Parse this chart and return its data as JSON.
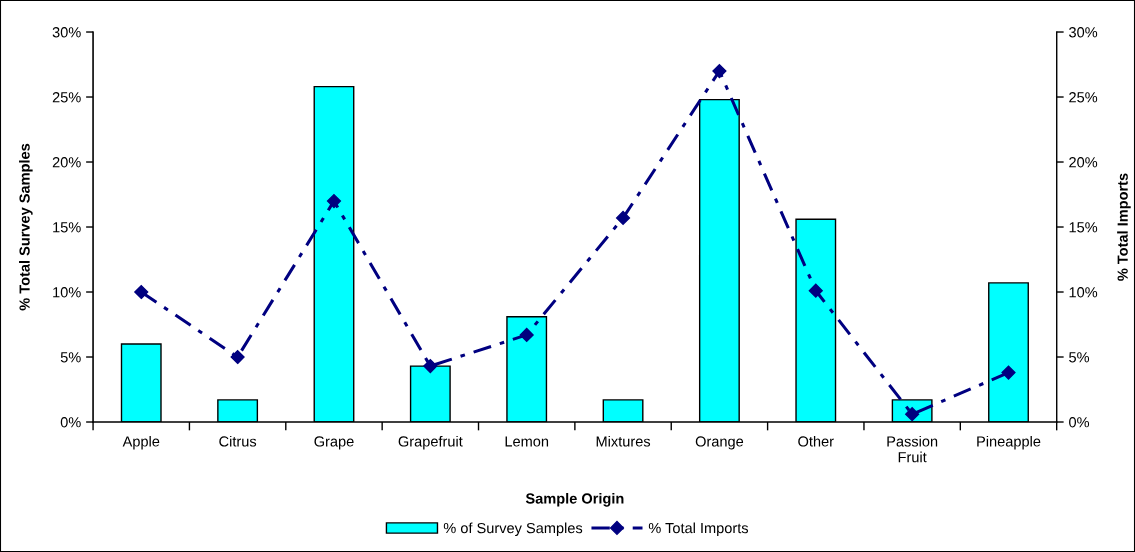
{
  "chart_data": {
    "type": "bar",
    "xlabel": "Sample Origin",
    "ylabel": "% Total Survey Samples",
    "y2label": "% Total Imports",
    "categories": [
      "Apple",
      "Citrus",
      "Grape",
      "Grapefruit",
      "Lemon",
      "Mixtures",
      "Orange",
      "Other",
      "Passion\nFruit",
      "Pineapple"
    ],
    "series": [
      {
        "name": "% of Survey Samples",
        "color": "#00ffff",
        "values": [
          6.0,
          1.7,
          25.8,
          4.3,
          8.1,
          1.7,
          24.8,
          15.6,
          1.7,
          10.7
        ]
      },
      {
        "name": "% Total Imports",
        "type": "line",
        "axis": "y2",
        "color": "#000080",
        "marker": "diamond",
        "line_style": "dashdot",
        "values": [
          10.0,
          5.0,
          17.0,
          4.3,
          6.7,
          15.7,
          27.0,
          10.1,
          0.6,
          3.8
        ]
      }
    ],
    "ylim": [
      0,
      30
    ],
    "yticks": [
      {
        "value": 0,
        "label": "0%"
      },
      {
        "value": 5,
        "label": "5%"
      },
      {
        "value": 10,
        "label": "10%"
      },
      {
        "value": 15,
        "label": "15%"
      },
      {
        "value": 20,
        "label": "20%"
      },
      {
        "value": 25,
        "label": "25%"
      },
      {
        "value": 30,
        "label": "30%"
      }
    ],
    "y2lim": [
      0,
      30
    ],
    "y2ticks": [
      {
        "value": 0,
        "label": "0%"
      },
      {
        "value": 5,
        "label": "5%"
      },
      {
        "value": 10,
        "label": "10%"
      },
      {
        "value": 15,
        "label": "15%"
      },
      {
        "value": 20,
        "label": "20%"
      },
      {
        "value": 25,
        "label": "25%"
      },
      {
        "value": 30,
        "label": "30%"
      }
    ],
    "legend": "bottom",
    "grid": false
  }
}
